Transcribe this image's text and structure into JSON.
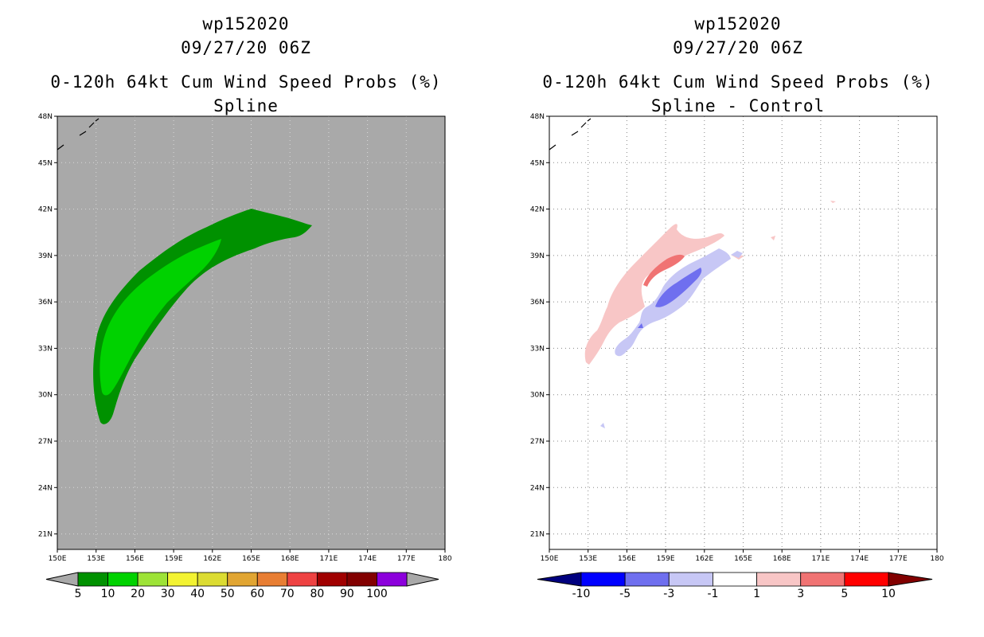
{
  "left": {
    "storm_id": "wp152020",
    "datetime": "09/27/20 06Z",
    "product": "0-120h 64kt Cum Wind Speed Probs (%)",
    "subtitle": "Spline",
    "colorbar": {
      "labels": [
        "5",
        "10",
        "20",
        "30",
        "40",
        "50",
        "60",
        "70",
        "80",
        "90",
        "100"
      ],
      "colors": [
        "#009100",
        "#00d200",
        "#9de337",
        "#f3f332",
        "#dcdc32",
        "#e1a532",
        "#e87e33",
        "#ee4242",
        "#a00000",
        "#820000",
        "#8c00dc"
      ]
    },
    "fill_colors": {
      "background": "#a9a9a9",
      "band_outer": "#009100",
      "band_inner": "#00d200"
    }
  },
  "right": {
    "storm_id": "wp152020",
    "datetime": "09/27/20 06Z",
    "product": "0-120h 64kt Cum Wind Speed Probs (%)",
    "subtitle": "Spline - Control",
    "colorbar": {
      "labels": [
        "-10",
        "-5",
        "-3",
        "-1",
        "1",
        "3",
        "5",
        "10"
      ],
      "colors": [
        "#00007f",
        "#0000ff",
        "#6f6fef",
        "#c7c7f5",
        "#ffffff",
        "#f8c6c6",
        "#f07373",
        "#ff0000",
        "#820000"
      ]
    },
    "fill_colors": {
      "light_red": "#f8c6c6",
      "mid_red": "#f07373",
      "light_blue": "#c7c7f5",
      "mid_blue": "#6f6fef",
      "dark_blue": "#0000ff"
    }
  },
  "axes": {
    "lat_labels": [
      "48N",
      "45N",
      "42N",
      "39N",
      "36N",
      "33N",
      "30N",
      "27N",
      "24N",
      "21N"
    ],
    "lon_labels": [
      "150E",
      "153E",
      "156E",
      "159E",
      "162E",
      "165E",
      "168E",
      "171E",
      "174E",
      "177E",
      "180"
    ],
    "lat_range": [
      20,
      48
    ],
    "lon_range": [
      150,
      180
    ]
  }
}
